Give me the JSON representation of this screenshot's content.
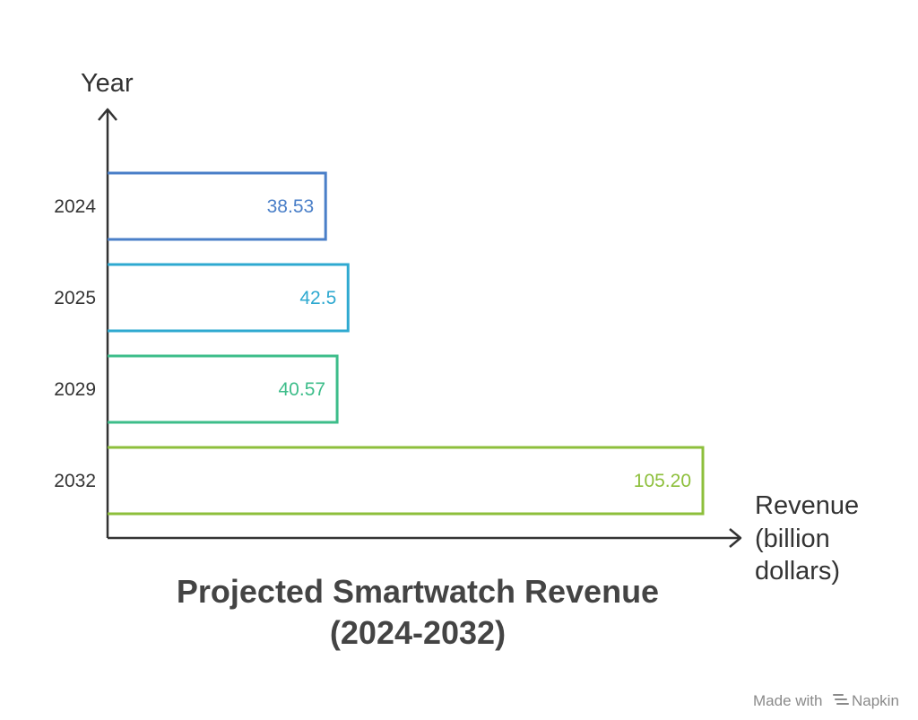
{
  "chart_data": {
    "type": "bar",
    "orientation": "horizontal",
    "categories": [
      "2024",
      "2025",
      "2029",
      "2032"
    ],
    "values": [
      38.53,
      42.5,
      40.57,
      105.2
    ],
    "value_labels": [
      "38.53",
      "42.5",
      "40.57",
      "105.20"
    ],
    "colors": [
      "#4a7fc8",
      "#2ea9d0",
      "#3dbd8a",
      "#8dbf3b"
    ],
    "title_line1": "Projected Smartwatch Revenue",
    "title_line2": "(2024-2032)",
    "ylabel": "Year",
    "xlabel_lines": [
      "Revenue",
      "(billion",
      "dollars)"
    ],
    "xlim": [
      0,
      105.2
    ]
  },
  "footer": {
    "made_with": "Made with",
    "brand": "Napkin"
  }
}
